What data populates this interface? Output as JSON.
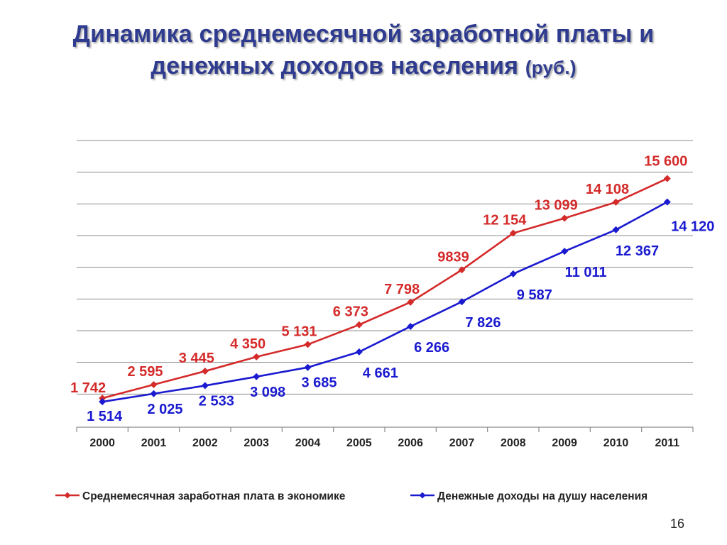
{
  "slide": {
    "title_line1": "Динамика среднемесячной заработной платы и",
    "title_line2": "денежных доходов населения",
    "title_unit": "(руб.)",
    "page_number": "16"
  },
  "chart_data": {
    "type": "line",
    "title": "Динамика среднемесячной заработной платы и денежных доходов населения (руб.)",
    "categories": [
      "2000",
      "2001",
      "2002",
      "2003",
      "2004",
      "2005",
      "2006",
      "2007",
      "2008",
      "2009",
      "2010",
      "2011"
    ],
    "ylim": [
      0,
      18000
    ],
    "grid": true,
    "legend_position": "bottom",
    "series": [
      {
        "name": "Среднемесячная заработная плата в экономике",
        "color": "#d42a2a",
        "values": [
          1742,
          2595,
          3445,
          4350,
          5131,
          6373,
          7798,
          9839,
          12154,
          13099,
          14108,
          15600
        ],
        "labels": [
          "1 742",
          "2 595",
          "3 445",
          "4 350",
          "5 131",
          "6 373",
          "7 798",
          "9839",
          "12 154",
          "13 099",
          "14 108",
          "15 600"
        ]
      },
      {
        "name": "Денежные доходы на душу населения",
        "color": "#1a1ad0",
        "values": [
          1514,
          2025,
          2533,
          3098,
          3685,
          4661,
          6266,
          7826,
          9587,
          11011,
          12367,
          14120
        ],
        "labels": [
          "1 514",
          "2 025",
          "2 533",
          "3 098",
          "3 685",
          "4 661",
          "6 266",
          "7 826",
          "9 587",
          "11 011",
          "12 367",
          "14 120"
        ]
      }
    ]
  }
}
